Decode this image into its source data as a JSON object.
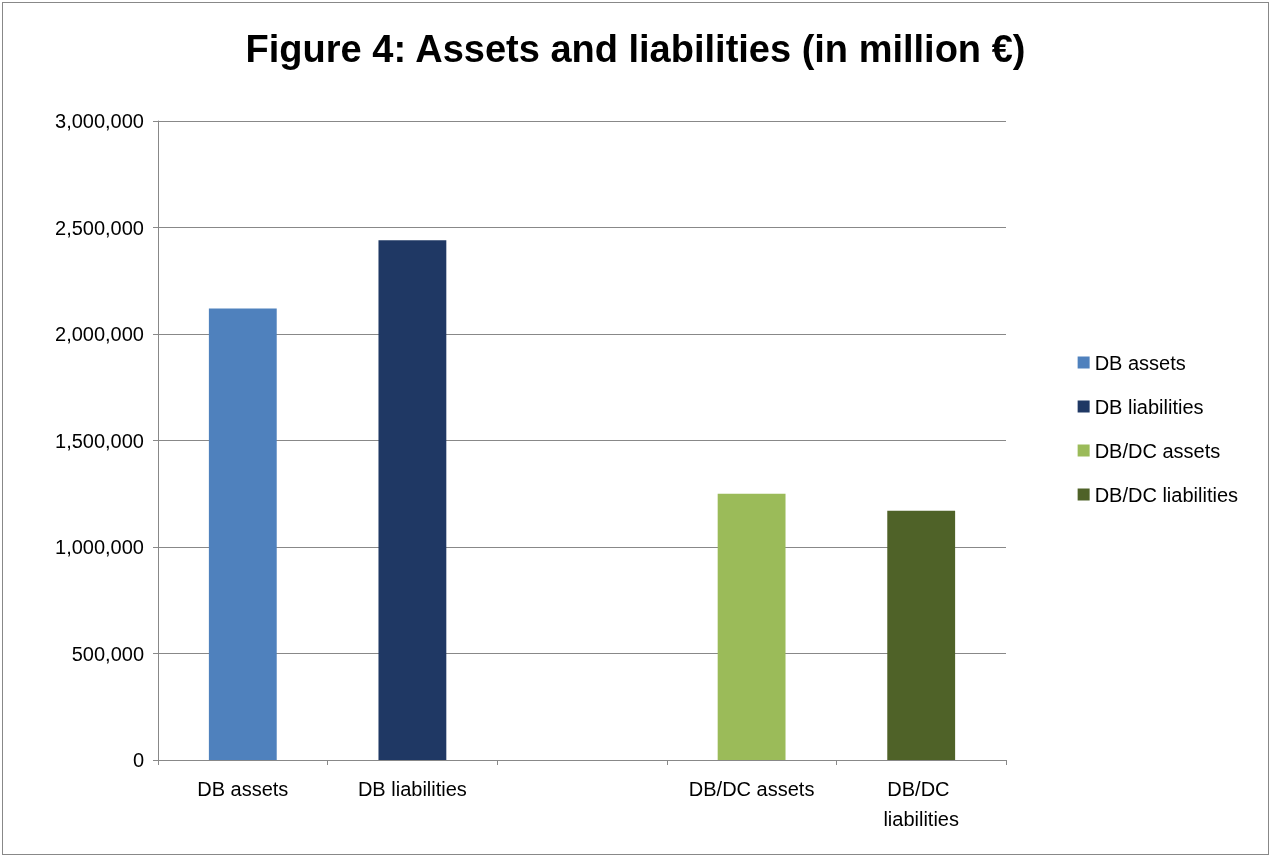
{
  "chart_data": {
    "type": "bar",
    "title": "Figure 4: Assets and liabilities (in million €)",
    "categories": [
      "DB assets",
      "DB liabilities",
      null,
      "DB/DC assets",
      "DB/DC liabilities"
    ],
    "series": [
      {
        "name": "DB assets",
        "color": "#4f81bd",
        "values": [
          2120000,
          null,
          null,
          null,
          null
        ]
      },
      {
        "name": "DB liabilities",
        "color": "#1f3864",
        "values": [
          null,
          2440000,
          null,
          null,
          null
        ]
      },
      {
        "name": "DB/DC assets",
        "color": "#9bbb59",
        "values": [
          null,
          null,
          null,
          1250000,
          null
        ]
      },
      {
        "name": "DB/DC liabilities",
        "color": "#4f6228",
        "values": [
          null,
          null,
          null,
          null,
          1170000
        ]
      }
    ],
    "ylim": [
      0,
      3000000
    ],
    "yticks": [
      0,
      {
        "value": 500000,
        "label": "500,000"
      },
      {
        "value": 1000000,
        "label": "1,000,000"
      },
      {
        "value": 1500000,
        "label": "1,500,000"
      },
      {
        "value": 2000000,
        "label": "2,000,000"
      },
      {
        "value": 2500000,
        "label": "2,500,000"
      },
      {
        "value": 3000000,
        "label": "3,000,000"
      }
    ],
    "grid": "y",
    "legend": "right"
  }
}
